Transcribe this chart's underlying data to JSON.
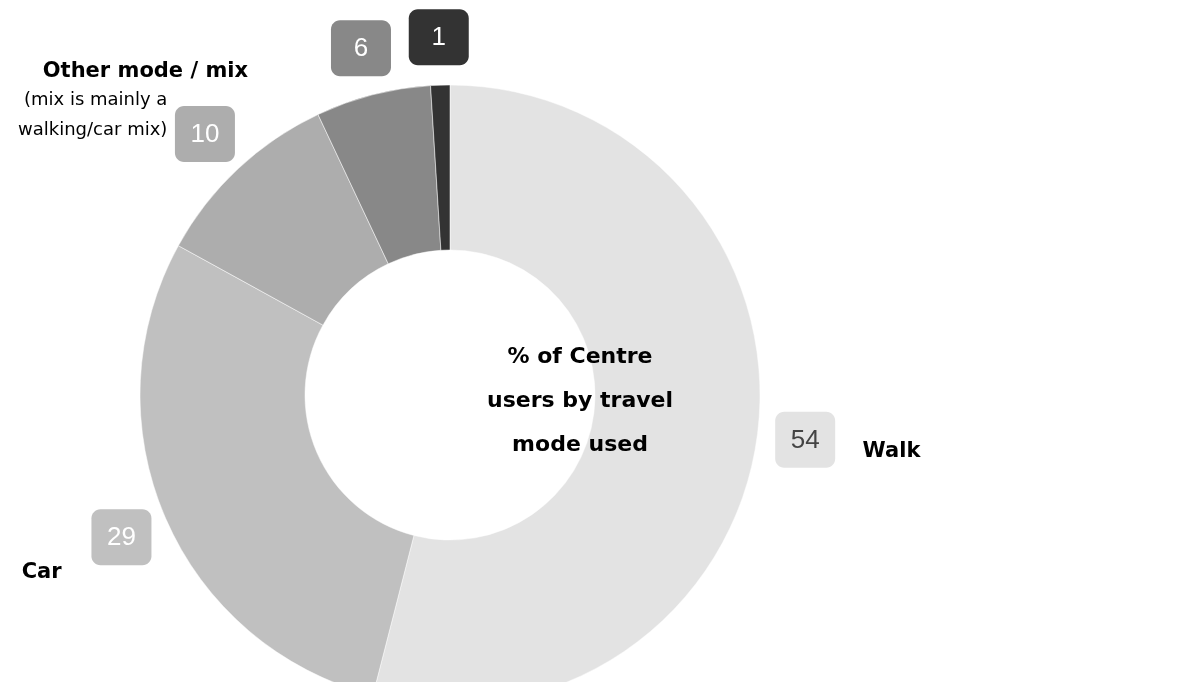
{
  "chart_data": {
    "type": "donut",
    "title": "% of Centre users by travel mode used",
    "categories": [
      "Walk",
      "Car",
      "Other mode / mix",
      null,
      null
    ],
    "values": [
      54,
      29,
      10,
      6,
      1
    ],
    "colors": [
      "#e3e3e3",
      "#c0c0c0",
      "#adadad",
      "#888888",
      "#333333"
    ],
    "data_labels": true,
    "annotations": [
      "(mix is mainly a walking/car mix)"
    ]
  }
}
